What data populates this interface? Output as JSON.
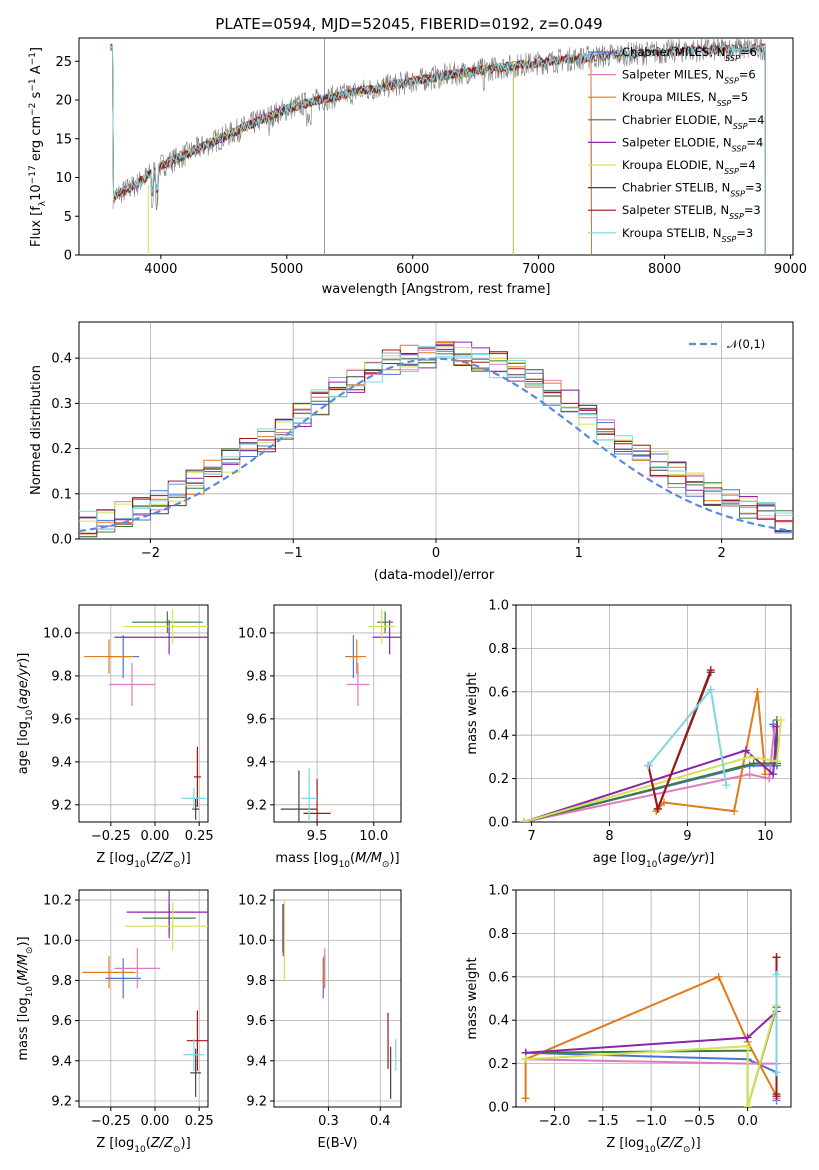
{
  "title": "PLATE=0594, MJD=52045, FIBERID=0192, z=0.049",
  "colors": {
    "chabrier_miles": "#4c72d0",
    "salpeter_miles": "#e07bc0",
    "kroupa_miles": "#e07b18",
    "chabrier_elodie": "#3f7a3f",
    "salpeter_elodie": "#8e24aa",
    "kroupa_elodie": "#d4e157",
    "chabrier_stelib": "#444444",
    "salpeter_stelib": "#a31414",
    "kroupa_stelib": "#7fd6e0",
    "data": "#808080",
    "normal": "#5b8bdb"
  },
  "chart_data": [
    {
      "id": "spectrum",
      "type": "line",
      "title": "PLATE=0594, MJD=52045, FIBERID=0192, z=0.049",
      "xlabel": "wavelength [Angstrom, rest frame]",
      "ylabel": "Flux [f_λ10^-17 erg cm^-2 s^-1 A^-1]",
      "xlim": [
        3350,
        9020
      ],
      "ylim": [
        0,
        28
      ],
      "xticks": [
        "4000",
        "5000",
        "6000",
        "7000",
        "8000",
        "9000"
      ],
      "yticks": [
        "0",
        "5",
        "10",
        "15",
        "20",
        "25"
      ],
      "legend_position": "right",
      "series": [
        {
          "name": "Chabrier MILES",
          "nssp": "6",
          "color_key": "chabrier_miles",
          "range": [
            3600,
            7420
          ]
        },
        {
          "name": "Salpeter MILES",
          "nssp": "6",
          "color_key": "salpeter_miles",
          "range": [
            3600,
            7420
          ]
        },
        {
          "name": "Kroupa MILES",
          "nssp": "5",
          "color_key": "kroupa_miles",
          "range": [
            3600,
            7420
          ]
        },
        {
          "name": "Chabrier ELODIE",
          "nssp": "4",
          "color_key": "chabrier_elodie",
          "range": [
            3600,
            6800
          ]
        },
        {
          "name": "Salpeter ELODIE",
          "nssp": "4",
          "color_key": "salpeter_elodie",
          "range": [
            3600,
            6800
          ]
        },
        {
          "name": "Kroupa ELODIE",
          "nssp": "4",
          "color_key": "kroupa_elodie",
          "range": [
            3600,
            6800
          ]
        },
        {
          "name": "Chabrier STELIB",
          "nssp": "3",
          "color_key": "chabrier_stelib",
          "range": [
            3600,
            8800
          ]
        },
        {
          "name": "Salpeter STELIB",
          "nssp": "3",
          "color_key": "salpeter_stelib",
          "range": [
            3600,
            8800
          ]
        },
        {
          "name": "Kroupa STELIB",
          "nssp": "3",
          "color_key": "kroupa_stelib",
          "range": [
            3600,
            8800
          ]
        }
      ],
      "continuum": {
        "x": [
          3620,
          3800,
          4000,
          4200,
          4400,
          4600,
          4800,
          5000,
          5200,
          5400,
          5600,
          5800,
          6000,
          6200,
          6400,
          6600,
          6800,
          7000,
          7200,
          7400,
          7600,
          7800,
          8000,
          8200,
          8400,
          8600,
          8800
        ],
        "y": [
          7.5,
          9.0,
          11.5,
          13.0,
          14.5,
          16.0,
          17.5,
          18.8,
          19.8,
          20.5,
          21.2,
          21.8,
          22.4,
          23.0,
          23.5,
          24.0,
          24.4,
          24.8,
          25.2,
          25.5,
          25.8,
          26.0,
          26.2,
          26.4,
          26.5,
          26.6,
          26.7
        ]
      }
    },
    {
      "id": "residuals",
      "type": "line",
      "xlabel": "(data-model)/error",
      "ylabel": "Normed distribution",
      "xlim": [
        -2.5,
        2.5
      ],
      "ylim": [
        0,
        0.48
      ],
      "xticks": [
        "−2",
        "−1",
        "0",
        "1",
        "2"
      ],
      "yticks": [
        "0.0",
        "0.1",
        "0.2",
        "0.3",
        "0.4"
      ],
      "grid": true,
      "legend_position": "top-right",
      "legend_label": "𝒩(0,1)",
      "bins": 40
    },
    {
      "id": "age_vs_Z",
      "type": "scatter",
      "xlabel": "Z [log10(Z/Z⊙)]",
      "ylabel": "age [log10(age/yr)]",
      "xlim": [
        -0.43,
        0.3
      ],
      "ylim": [
        9.12,
        10.13
      ],
      "xticks": [
        "−0.25",
        "0.00",
        "0.25"
      ],
      "yticks": [
        "9.2",
        "9.4",
        "9.6",
        "9.8",
        "10.0"
      ],
      "grid": true,
      "points": [
        {
          "key": "chabrier_miles",
          "x": -0.18,
          "y": 9.89,
          "xerr": 0.09,
          "yerr": 0.1
        },
        {
          "key": "salpeter_miles",
          "x": -0.13,
          "y": 9.76,
          "xerr": 0.13,
          "yerr": 0.1
        },
        {
          "key": "kroupa_miles",
          "x": -0.26,
          "y": 9.89,
          "xerr": 0.14,
          "yerr": 0.08
        },
        {
          "key": "chabrier_elodie",
          "x": 0.07,
          "y": 10.05,
          "xerr": 0.2,
          "yerr": 0.05
        },
        {
          "key": "salpeter_elodie",
          "x": 0.08,
          "y": 9.98,
          "xerr": 0.31,
          "yerr": 0.08
        },
        {
          "key": "kroupa_elodie",
          "x": 0.1,
          "y": 10.03,
          "xerr": 0.28,
          "yerr": 0.08
        },
        {
          "key": "chabrier_stelib",
          "x": 0.23,
          "y": 9.18,
          "xerr": 0.02,
          "yerr": 0.05
        },
        {
          "key": "salpeter_stelib",
          "x": 0.24,
          "y": 9.33,
          "xerr": 0.02,
          "yerr": 0.14
        },
        {
          "key": "kroupa_stelib",
          "x": 0.22,
          "y": 9.23,
          "xerr": 0.07,
          "yerr": 0.05
        }
      ]
    },
    {
      "id": "age_vs_mass",
      "type": "scatter",
      "xlabel": "mass [log10(M/M⊙)]",
      "ylabel": "",
      "xlim": [
        9.12,
        10.24
      ],
      "ylim": [
        9.12,
        10.13
      ],
      "xticks": [
        "9.5",
        "10.0"
      ],
      "yticks": [
        "9.2",
        "9.4",
        "9.6",
        "9.8",
        "10.0"
      ],
      "grid": true,
      "points": [
        {
          "key": "chabrier_miles",
          "x": 9.82,
          "y": 9.89,
          "xerr": 0.07,
          "yerr": 0.1
        },
        {
          "key": "salpeter_miles",
          "x": 9.86,
          "y": 9.76,
          "xerr": 0.1,
          "yerr": 0.1
        },
        {
          "key": "kroupa_miles",
          "x": 9.85,
          "y": 9.89,
          "xerr": 0.08,
          "yerr": 0.08
        },
        {
          "key": "chabrier_elodie",
          "x": 10.1,
          "y": 10.05,
          "xerr": 0.07,
          "yerr": 0.05
        },
        {
          "key": "salpeter_elodie",
          "x": 10.14,
          "y": 9.98,
          "xerr": 0.15,
          "yerr": 0.08
        },
        {
          "key": "kroupa_elodie",
          "x": 10.07,
          "y": 10.03,
          "xerr": 0.12,
          "yerr": 0.08
        },
        {
          "key": "chabrier_stelib",
          "x": 9.34,
          "y": 9.18,
          "xerr": 0.16,
          "yerr": 0.18
        },
        {
          "key": "salpeter_stelib",
          "x": 9.5,
          "y": 9.16,
          "xerr": 0.12,
          "yerr": 0.16
        },
        {
          "key": "kroupa_stelib",
          "x": 9.43,
          "y": 9.23,
          "xerr": 0.07,
          "yerr": 0.14
        }
      ]
    },
    {
      "id": "weight_vs_age",
      "type": "line",
      "xlabel": "age [log10(age/yr)]",
      "ylabel": "mass weight",
      "xlim": [
        6.8,
        10.33
      ],
      "ylim": [
        0,
        1
      ],
      "xticks": [
        "7",
        "8",
        "9",
        "10"
      ],
      "yticks": [
        "0.0",
        "0.2",
        "0.4",
        "0.6",
        "0.8",
        "1.0"
      ],
      "grid": true,
      "series": [
        {
          "key": "chabrier_miles",
          "points": [
            [
              6.9,
              0.0
            ],
            [
              9.8,
              0.26
            ],
            [
              10.15,
              0.26
            ],
            [
              10.1,
              0.45
            ]
          ]
        },
        {
          "key": "salpeter_miles",
          "points": [
            [
              6.9,
              0.0
            ],
            [
              9.8,
              0.22
            ],
            [
              10.05,
              0.2
            ],
            [
              10.12,
              0.44
            ]
          ]
        },
        {
          "key": "kroupa_miles",
          "points": [
            [
              8.6,
              0.05
            ],
            [
              8.7,
              0.09
            ],
            [
              9.6,
              0.05
            ],
            [
              9.9,
              0.6
            ],
            [
              10.0,
              0.22
            ]
          ]
        },
        {
          "key": "chabrier_elodie",
          "points": [
            [
              6.9,
              0.0
            ],
            [
              9.85,
              0.27
            ],
            [
              10.15,
              0.27
            ],
            [
              10.15,
              0.47
            ]
          ]
        },
        {
          "key": "salpeter_elodie",
          "points": [
            [
              6.9,
              0.0
            ],
            [
              9.75,
              0.33
            ],
            [
              10.1,
              0.22
            ],
            [
              10.15,
              0.44
            ]
          ]
        },
        {
          "key": "kroupa_elodie",
          "points": [
            [
              6.9,
              0.0
            ],
            [
              9.8,
              0.3
            ],
            [
              10.15,
              0.28
            ],
            [
              10.2,
              0.47
            ]
          ]
        },
        {
          "key": "chabrier_stelib",
          "points": [
            [
              8.5,
              0.26
            ],
            [
              8.62,
              0.06
            ],
            [
              9.3,
              0.69
            ]
          ]
        },
        {
          "key": "salpeter_stelib",
          "points": [
            [
              8.5,
              0.26
            ],
            [
              8.62,
              0.06
            ],
            [
              9.3,
              0.7
            ]
          ]
        },
        {
          "key": "kroupa_stelib",
          "points": [
            [
              8.5,
              0.26
            ],
            [
              9.3,
              0.61
            ],
            [
              9.5,
              0.17
            ]
          ]
        }
      ]
    },
    {
      "id": "mass_vs_Z",
      "type": "scatter",
      "xlabel": "Z [log10(Z/Z⊙)]",
      "ylabel": "mass [log10(M/M⊙)]",
      "xlim": [
        -0.43,
        0.3
      ],
      "ylim": [
        9.17,
        10.25
      ],
      "xticks": [
        "−0.25",
        "0.00",
        "0.25"
      ],
      "yticks": [
        "9.2",
        "9.4",
        "9.6",
        "9.8",
        "10.0",
        "10.2"
      ],
      "grid": true,
      "points": [
        {
          "key": "chabrier_miles",
          "x": -0.18,
          "y": 9.81,
          "xerr": 0.1,
          "yerr": 0.1
        },
        {
          "key": "salpeter_miles",
          "x": -0.1,
          "y": 9.86,
          "xerr": 0.13,
          "yerr": 0.1
        },
        {
          "key": "kroupa_miles",
          "x": -0.26,
          "y": 9.84,
          "xerr": 0.15,
          "yerr": 0.08
        },
        {
          "key": "chabrier_elodie",
          "x": 0.08,
          "y": 10.11,
          "xerr": 0.15,
          "yerr": 0.07
        },
        {
          "key": "salpeter_elodie",
          "x": 0.08,
          "y": 10.14,
          "xerr": 0.24,
          "yerr": 0.13
        },
        {
          "key": "kroupa_elodie",
          "x": 0.1,
          "y": 10.07,
          "xerr": 0.27,
          "yerr": 0.12
        },
        {
          "key": "chabrier_stelib",
          "x": 0.23,
          "y": 9.34,
          "xerr": 0.03,
          "yerr": 0.12
        },
        {
          "key": "salpeter_stelib",
          "x": 0.24,
          "y": 9.5,
          "xerr": 0.06,
          "yerr": 0.15
        },
        {
          "key": "kroupa_stelib",
          "x": 0.22,
          "y": 9.43,
          "xerr": 0.06,
          "yerr": 0.08
        }
      ]
    },
    {
      "id": "mass_vs_ebv",
      "type": "scatter",
      "xlabel": "E(B-V)",
      "ylabel": "",
      "xlim": [
        0.195,
        0.44
      ],
      "ylim": [
        9.17,
        10.25
      ],
      "xticks": [
        "0.3",
        "0.4"
      ],
      "yticks": [
        "9.2",
        "9.4",
        "9.6",
        "9.8",
        "10.0",
        "10.2"
      ],
      "grid": true,
      "points": [
        {
          "key": "chabrier_miles",
          "x": 0.29,
          "y": 9.81,
          "xerr": 0.001,
          "yerr": 0.1
        },
        {
          "key": "salpeter_miles",
          "x": 0.293,
          "y": 9.86,
          "xerr": 0.001,
          "yerr": 0.1
        },
        {
          "key": "kroupa_miles",
          "x": 0.291,
          "y": 9.84,
          "xerr": 0.001,
          "yerr": 0.08
        },
        {
          "key": "chabrier_elodie",
          "x": 0.212,
          "y": 10.06,
          "xerr": 0.001,
          "yerr": 0.12
        },
        {
          "key": "salpeter_elodie",
          "x": 0.213,
          "y": 10.05,
          "xerr": 0.001,
          "yerr": 0.13
        },
        {
          "key": "kroupa_elodie",
          "x": 0.215,
          "y": 10.0,
          "xerr": 0.001,
          "yerr": 0.2
        },
        {
          "key": "chabrier_stelib",
          "x": 0.42,
          "y": 9.34,
          "xerr": 0.001,
          "yerr": 0.13
        },
        {
          "key": "salpeter_stelib",
          "x": 0.415,
          "y": 9.5,
          "xerr": 0.001,
          "yerr": 0.14
        },
        {
          "key": "kroupa_stelib",
          "x": 0.43,
          "y": 9.43,
          "xerr": 0.001,
          "yerr": 0.08
        }
      ]
    },
    {
      "id": "weight_vs_Z",
      "type": "line",
      "xlabel": "Z [log10(Z/Z⊙)]",
      "ylabel": "mass weight",
      "xlim": [
        -2.4,
        0.45
      ],
      "ylim": [
        0,
        1
      ],
      "xticks": [
        "−2.0",
        "−1.5",
        "−1.0",
        "−0.5",
        "0.0"
      ],
      "yticks": [
        "0.0",
        "0.2",
        "0.4",
        "0.6",
        "0.8",
        "1.0"
      ],
      "grid": true,
      "series": [
        {
          "key": "chabrier_miles",
          "points": [
            [
              -2.3,
              0.25
            ],
            [
              0.0,
              0.22
            ],
            [
              0.3,
              0.16
            ],
            [
              0.3,
              0.03
            ]
          ]
        },
        {
          "key": "salpeter_miles",
          "points": [
            [
              -2.3,
              0.22
            ],
            [
              0.0,
              0.2
            ],
            [
              0.3,
              0.2
            ],
            [
              0.3,
              0.04
            ]
          ]
        },
        {
          "key": "kroupa_miles",
          "points": [
            [
              -2.3,
              0.04
            ],
            [
              -2.3,
              0.22
            ],
            [
              -0.3,
              0.6
            ],
            [
              0.0,
              0.3
            ],
            [
              0.3,
              0.05
            ]
          ]
        },
        {
          "key": "chabrier_elodie",
          "points": [
            [
              -2.3,
              0.25
            ],
            [
              0.0,
              0.26
            ],
            [
              0.0,
              0.0
            ],
            [
              0.3,
              0.46
            ]
          ]
        },
        {
          "key": "salpeter_elodie",
          "points": [
            [
              -2.3,
              0.25
            ],
            [
              0.0,
              0.32
            ],
            [
              0.3,
              0.44
            ]
          ]
        },
        {
          "key": "kroupa_elodie",
          "points": [
            [
              -2.3,
              0.22
            ],
            [
              0.0,
              0.28
            ],
            [
              0.0,
              0.0
            ],
            [
              0.3,
              0.47
            ]
          ]
        },
        {
          "key": "chabrier_stelib",
          "points": [
            [
              0.3,
              0.06
            ],
            [
              0.3,
              0.69
            ]
          ]
        },
        {
          "key": "salpeter_stelib",
          "points": [
            [
              0.3,
              0.05
            ],
            [
              0.3,
              0.69
            ]
          ]
        },
        {
          "key": "kroupa_stelib",
          "points": [
            [
              0.3,
              0.16
            ],
            [
              0.3,
              0.61
            ]
          ]
        }
      ]
    }
  ]
}
